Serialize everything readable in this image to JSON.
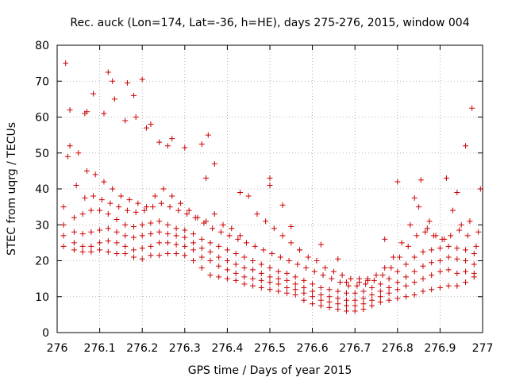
{
  "chart_data": {
    "type": "scatter",
    "title": "Rec. auck (Lon=174, Lat=-36, h=HE), days 275-276, 2015, window 004",
    "xlabel": "GPS time / Days of year 2015",
    "ylabel": "STEC from uqrg / TECUs",
    "xlim": [
      276,
      277
    ],
    "ylim": [
      0,
      80
    ],
    "xticks": [
      "276",
      "276.1",
      "276.2",
      "276.3",
      "276.4",
      "276.5",
      "276.6",
      "276.7",
      "276.8",
      "276.9",
      "277"
    ],
    "yticks": [
      "0",
      "10",
      "20",
      "30",
      "40",
      "50",
      "60",
      "70",
      "80"
    ],
    "grid": true,
    "marker": "plus",
    "color": "#cc0000",
    "series": [
      {
        "x": [
          276.015,
          276.04,
          276.06,
          276.08,
          276.1,
          276.12,
          276.14,
          276.16,
          276.18,
          276.2,
          276.22,
          276.24,
          276.26,
          276.28,
          276.3,
          276.32,
          276.34,
          276.36,
          276.38,
          276.4,
          276.42,
          276.44,
          276.46,
          276.48,
          276.5,
          276.52,
          276.54,
          276.56,
          276.58,
          276.6,
          276.62,
          276.64,
          276.66,
          276.68,
          276.7,
          276.72,
          276.74,
          276.76,
          276.78,
          276.8,
          276.82,
          276.84,
          276.86,
          276.88,
          276.9,
          276.92,
          276.94,
          276.96,
          276.98
        ],
        "y": [
          24,
          23,
          22.5,
          22.5,
          23,
          22.5,
          22,
          22,
          21,
          20.5,
          21.5,
          21.5,
          22,
          22,
          21.5,
          20,
          18,
          16,
          15.5,
          15,
          14.5,
          13.5,
          13,
          12.5,
          12,
          11.5,
          11,
          10.5,
          9,
          8,
          7.5,
          7,
          6.5,
          6,
          6,
          6.5,
          7.5,
          8.5,
          9,
          9.5,
          10,
          10.5,
          11.5,
          12,
          12.5,
          13,
          13,
          14,
          15.5
        ]
      },
      {
        "x": [
          276.015,
          276.04,
          276.06,
          276.08,
          276.1,
          276.12,
          276.14,
          276.16,
          276.18,
          276.2,
          276.22,
          276.24,
          276.26,
          276.28,
          276.3,
          276.32,
          276.34,
          276.36,
          276.38,
          276.4,
          276.42,
          276.44,
          276.46,
          276.48,
          276.5,
          276.52,
          276.54,
          276.56,
          276.58,
          276.6,
          276.62,
          276.64,
          276.66,
          276.68,
          276.7,
          276.72,
          276.74,
          276.76,
          276.78,
          276.8,
          276.82,
          276.84,
          276.86,
          276.88,
          276.9,
          276.92,
          276.94,
          276.96,
          276.98
        ],
        "y": [
          27,
          25,
          24,
          24,
          25,
          25.5,
          25,
          24,
          23,
          23.5,
          24,
          25,
          25,
          24.5,
          24,
          23,
          21,
          20,
          18.5,
          17.5,
          16.5,
          15.5,
          15,
          14.5,
          14,
          13.5,
          12.5,
          12,
          11,
          10,
          9,
          8.5,
          8,
          7.5,
          7.5,
          8,
          9,
          10,
          11,
          12,
          13,
          14,
          15,
          16,
          17,
          17.5,
          16.5,
          17,
          16.5
        ]
      },
      {
        "x": [
          276.015,
          276.04,
          276.06,
          276.08,
          276.1,
          276.12,
          276.14,
          276.16,
          276.18,
          276.2,
          276.22,
          276.24,
          276.26,
          276.28,
          276.3,
          276.32,
          276.34,
          276.36,
          276.38,
          276.4,
          276.42,
          276.44,
          276.46,
          276.48,
          276.5,
          276.52,
          276.54,
          276.56,
          276.58,
          276.6,
          276.62,
          276.64,
          276.66,
          276.68,
          276.7,
          276.72,
          276.74,
          276.76,
          276.78,
          276.8,
          276.82,
          276.84,
          276.86,
          276.88,
          276.9,
          276.92,
          276.94,
          276.96,
          276.98
        ],
        "y": [
          30,
          28,
          27.5,
          28,
          28.5,
          29,
          28,
          27,
          26.5,
          27,
          27.5,
          28,
          27.5,
          27,
          26.5,
          25,
          23.5,
          22.5,
          21,
          20,
          19,
          18,
          17.5,
          16.5,
          15.5,
          15,
          14.5,
          13.5,
          12.5,
          11.5,
          10.5,
          10,
          9.5,
          9,
          9,
          9.5,
          10.5,
          11.5,
          12.5,
          14,
          15.5,
          17,
          18.5,
          19.5,
          20,
          21,
          20.5,
          20,
          19
        ]
      },
      {
        "x": [
          276.015,
          276.04,
          276.06,
          276.08,
          276.1,
          276.12,
          276.14,
          276.16,
          276.18,
          276.2,
          276.22,
          276.24,
          276.26,
          276.28,
          276.3,
          276.32,
          276.34,
          276.36,
          276.38,
          276.4,
          276.42,
          276.44,
          276.46,
          276.48,
          276.5,
          276.52,
          276.54,
          276.56,
          276.58,
          276.6,
          276.62,
          276.64,
          276.66,
          276.68,
          276.7,
          276.72,
          276.74,
          276.76,
          276.78,
          276.8,
          276.82,
          276.84,
          276.86,
          276.88,
          276.9,
          276.92,
          276.94,
          276.96,
          276.98
        ],
        "y": [
          35,
          32,
          33,
          34,
          34,
          33,
          31.5,
          30,
          29.5,
          30,
          30.5,
          31,
          30,
          29,
          28.5,
          27.5,
          26,
          25,
          24,
          23,
          22,
          21,
          20,
          19,
          18,
          17,
          16.5,
          15.5,
          14.5,
          13.5,
          12.5,
          12,
          11.5,
          11,
          11,
          11.5,
          12.5,
          13.5,
          15,
          17,
          19,
          21,
          22.5,
          23,
          23.5,
          24,
          23.5,
          23,
          22
        ]
      },
      {
        "x": [
          276.025,
          276.045,
          276.065,
          276.085,
          276.105,
          276.125,
          276.145,
          276.165,
          276.185,
          276.205,
          276.225,
          276.245,
          276.265,
          276.285,
          276.305,
          276.325,
          276.345,
          276.365,
          276.385,
          276.405,
          276.425,
          276.445,
          276.465,
          276.485,
          276.505,
          276.525,
          276.545,
          276.565,
          276.585,
          276.605,
          276.625,
          276.645,
          276.665,
          276.685,
          276.705,
          276.725,
          276.745,
          276.765,
          276.785,
          276.805,
          276.825,
          276.845,
          276.865,
          276.885,
          276.905,
          276.925,
          276.945,
          276.965,
          276.985
        ],
        "y": [
          49,
          41,
          37.5,
          38,
          37,
          36,
          35,
          34,
          33.5,
          34,
          35,
          36,
          35,
          34,
          33,
          32,
          30.5,
          29,
          28,
          27,
          26,
          25,
          24,
          23,
          22,
          21,
          20,
          19,
          18,
          17,
          16,
          15,
          14,
          13,
          13,
          13.5,
          14.5,
          16,
          18,
          21,
          24,
          27,
          28,
          27,
          26,
          27,
          28.5,
          27,
          24
        ]
      },
      {
        "x": [
          276.03,
          276.05,
          276.07,
          276.09,
          276.11,
          276.13,
          276.15,
          276.17,
          276.19,
          276.21,
          276.23,
          276.25,
          276.27,
          276.29,
          276.31,
          276.33,
          276.35,
          276.37,
          276.39,
          276.41,
          276.43,
          276.45,
          276.47,
          276.49,
          276.51,
          276.53,
          276.55,
          276.57,
          276.59,
          276.61,
          276.63,
          276.65,
          276.67,
          276.69,
          276.71,
          276.73,
          276.75,
          276.77,
          276.79,
          276.81,
          276.83,
          276.85,
          276.87,
          276.89,
          276.91,
          276.93,
          276.95,
          276.97,
          276.99
        ],
        "y": [
          62,
          50,
          45,
          44,
          42,
          40,
          38,
          37,
          36,
          35,
          38,
          40,
          38,
          36,
          34,
          32,
          31,
          33,
          30,
          29,
          27,
          38,
          33,
          31,
          29,
          27,
          25,
          23,
          21,
          20,
          18,
          17,
          16,
          15,
          14,
          15,
          16,
          18,
          21,
          25,
          30,
          35,
          29,
          27,
          26,
          34,
          30,
          31,
          28
        ]
      },
      {
        "x": [
          276.02,
          276.065,
          276.085,
          276.11,
          276.13,
          276.16,
          276.185,
          276.21,
          276.24,
          276.26,
          276.3,
          276.34,
          276.355,
          276.37,
          276.43,
          276.5,
          276.53,
          276.55,
          276.57,
          276.62,
          276.66,
          276.68,
          276.71,
          276.73,
          276.8,
          276.84,
          276.855,
          276.875,
          276.915,
          276.94,
          276.96,
          276.975,
          276.995
        ],
        "y": [
          75,
          61,
          66.5,
          61,
          70,
          59,
          60,
          57,
          53,
          52,
          51.5,
          52.5,
          55,
          47,
          39,
          43,
          35.5,
          29.5,
          23,
          24.5,
          20.5,
          14,
          15,
          14.5,
          42,
          37.5,
          42.5,
          31,
          43,
          39,
          52,
          62.5,
          40
        ]
      },
      {
        "x": [
          276.03,
          276.07,
          276.12,
          276.135,
          276.165,
          276.18,
          276.2,
          276.22,
          276.27,
          276.35,
          276.5,
          276.77
        ],
        "y": [
          52,
          61.5,
          72.5,
          65,
          69.5,
          66,
          70.5,
          58,
          54,
          43,
          41,
          26
        ]
      }
    ]
  }
}
